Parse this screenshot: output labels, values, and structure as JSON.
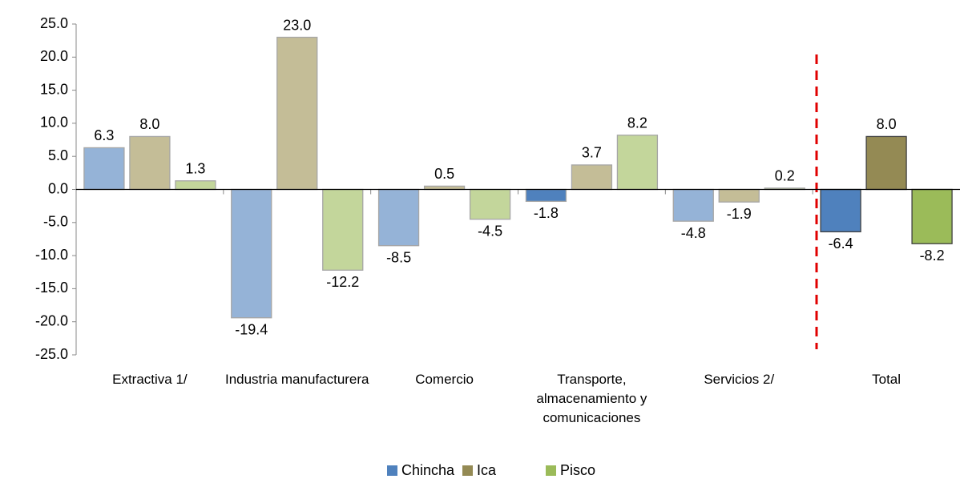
{
  "chart_data": {
    "type": "bar",
    "categories": [
      "Extractiva 1/",
      "Industria manufacturera",
      "Comercio",
      "Transporte, almacenamiento y comunicaciones",
      "Servicios 2/",
      "Total"
    ],
    "series": [
      {
        "name": "Chincha",
        "color": "#4f81bd",
        "colors": [
          "#95b3d7",
          "#95b3d7",
          "#95b3d7",
          "#4f81bd",
          "#95b3d7",
          "#4f81bd"
        ],
        "values": [
          6.3,
          -19.4,
          -8.5,
          -1.8,
          -4.8,
          -6.4
        ],
        "value_labels": [
          "6.3",
          "-19.4",
          "-8.5",
          "-1.8",
          "-4.8",
          "-6.4"
        ]
      },
      {
        "name": "Ica",
        "color": "#948a54",
        "colors": [
          "#c4bd97",
          "#c4bd97",
          "#c4bd97",
          "#c4bd97",
          "#c4bd97",
          "#948a54"
        ],
        "values": [
          8.0,
          23.0,
          0.5,
          3.7,
          -1.9,
          8.0
        ],
        "value_labels": [
          "8.0",
          "23.0",
          "0.5",
          "3.7",
          "-1.9",
          "8.0"
        ]
      },
      {
        "name": "Pisco",
        "color": "#9bbb59",
        "colors": [
          "#c3d69b",
          "#c3d69b",
          "#c3d69b",
          "#c3d69b",
          "#c3d69b",
          "#9bbb59"
        ],
        "values": [
          1.3,
          -12.2,
          -4.5,
          8.2,
          0.2,
          -8.2
        ],
        "value_labels": [
          "1.3",
          "-12.2",
          "-4.5",
          "8.2",
          "0.2",
          "-8.2"
        ]
      }
    ],
    "ylim": [
      -25,
      25
    ],
    "yticks": [
      {
        "value": -25,
        "label": "-25.0"
      },
      {
        "value": -20,
        "label": "-20.0"
      },
      {
        "value": -15,
        "label": "-15.0"
      },
      {
        "value": -10,
        "label": "-10.0"
      },
      {
        "value": -5,
        "label": "-5.0"
      },
      {
        "value": 0,
        "label": "0.0"
      },
      {
        "value": 5,
        "label": "5.0"
      },
      {
        "value": 10,
        "label": "10.0"
      },
      {
        "value": 15,
        "label": "15.0"
      },
      {
        "value": 20,
        "label": "20.0"
      },
      {
        "value": 25,
        "label": "25.0"
      }
    ],
    "legend": "bottom"
  }
}
